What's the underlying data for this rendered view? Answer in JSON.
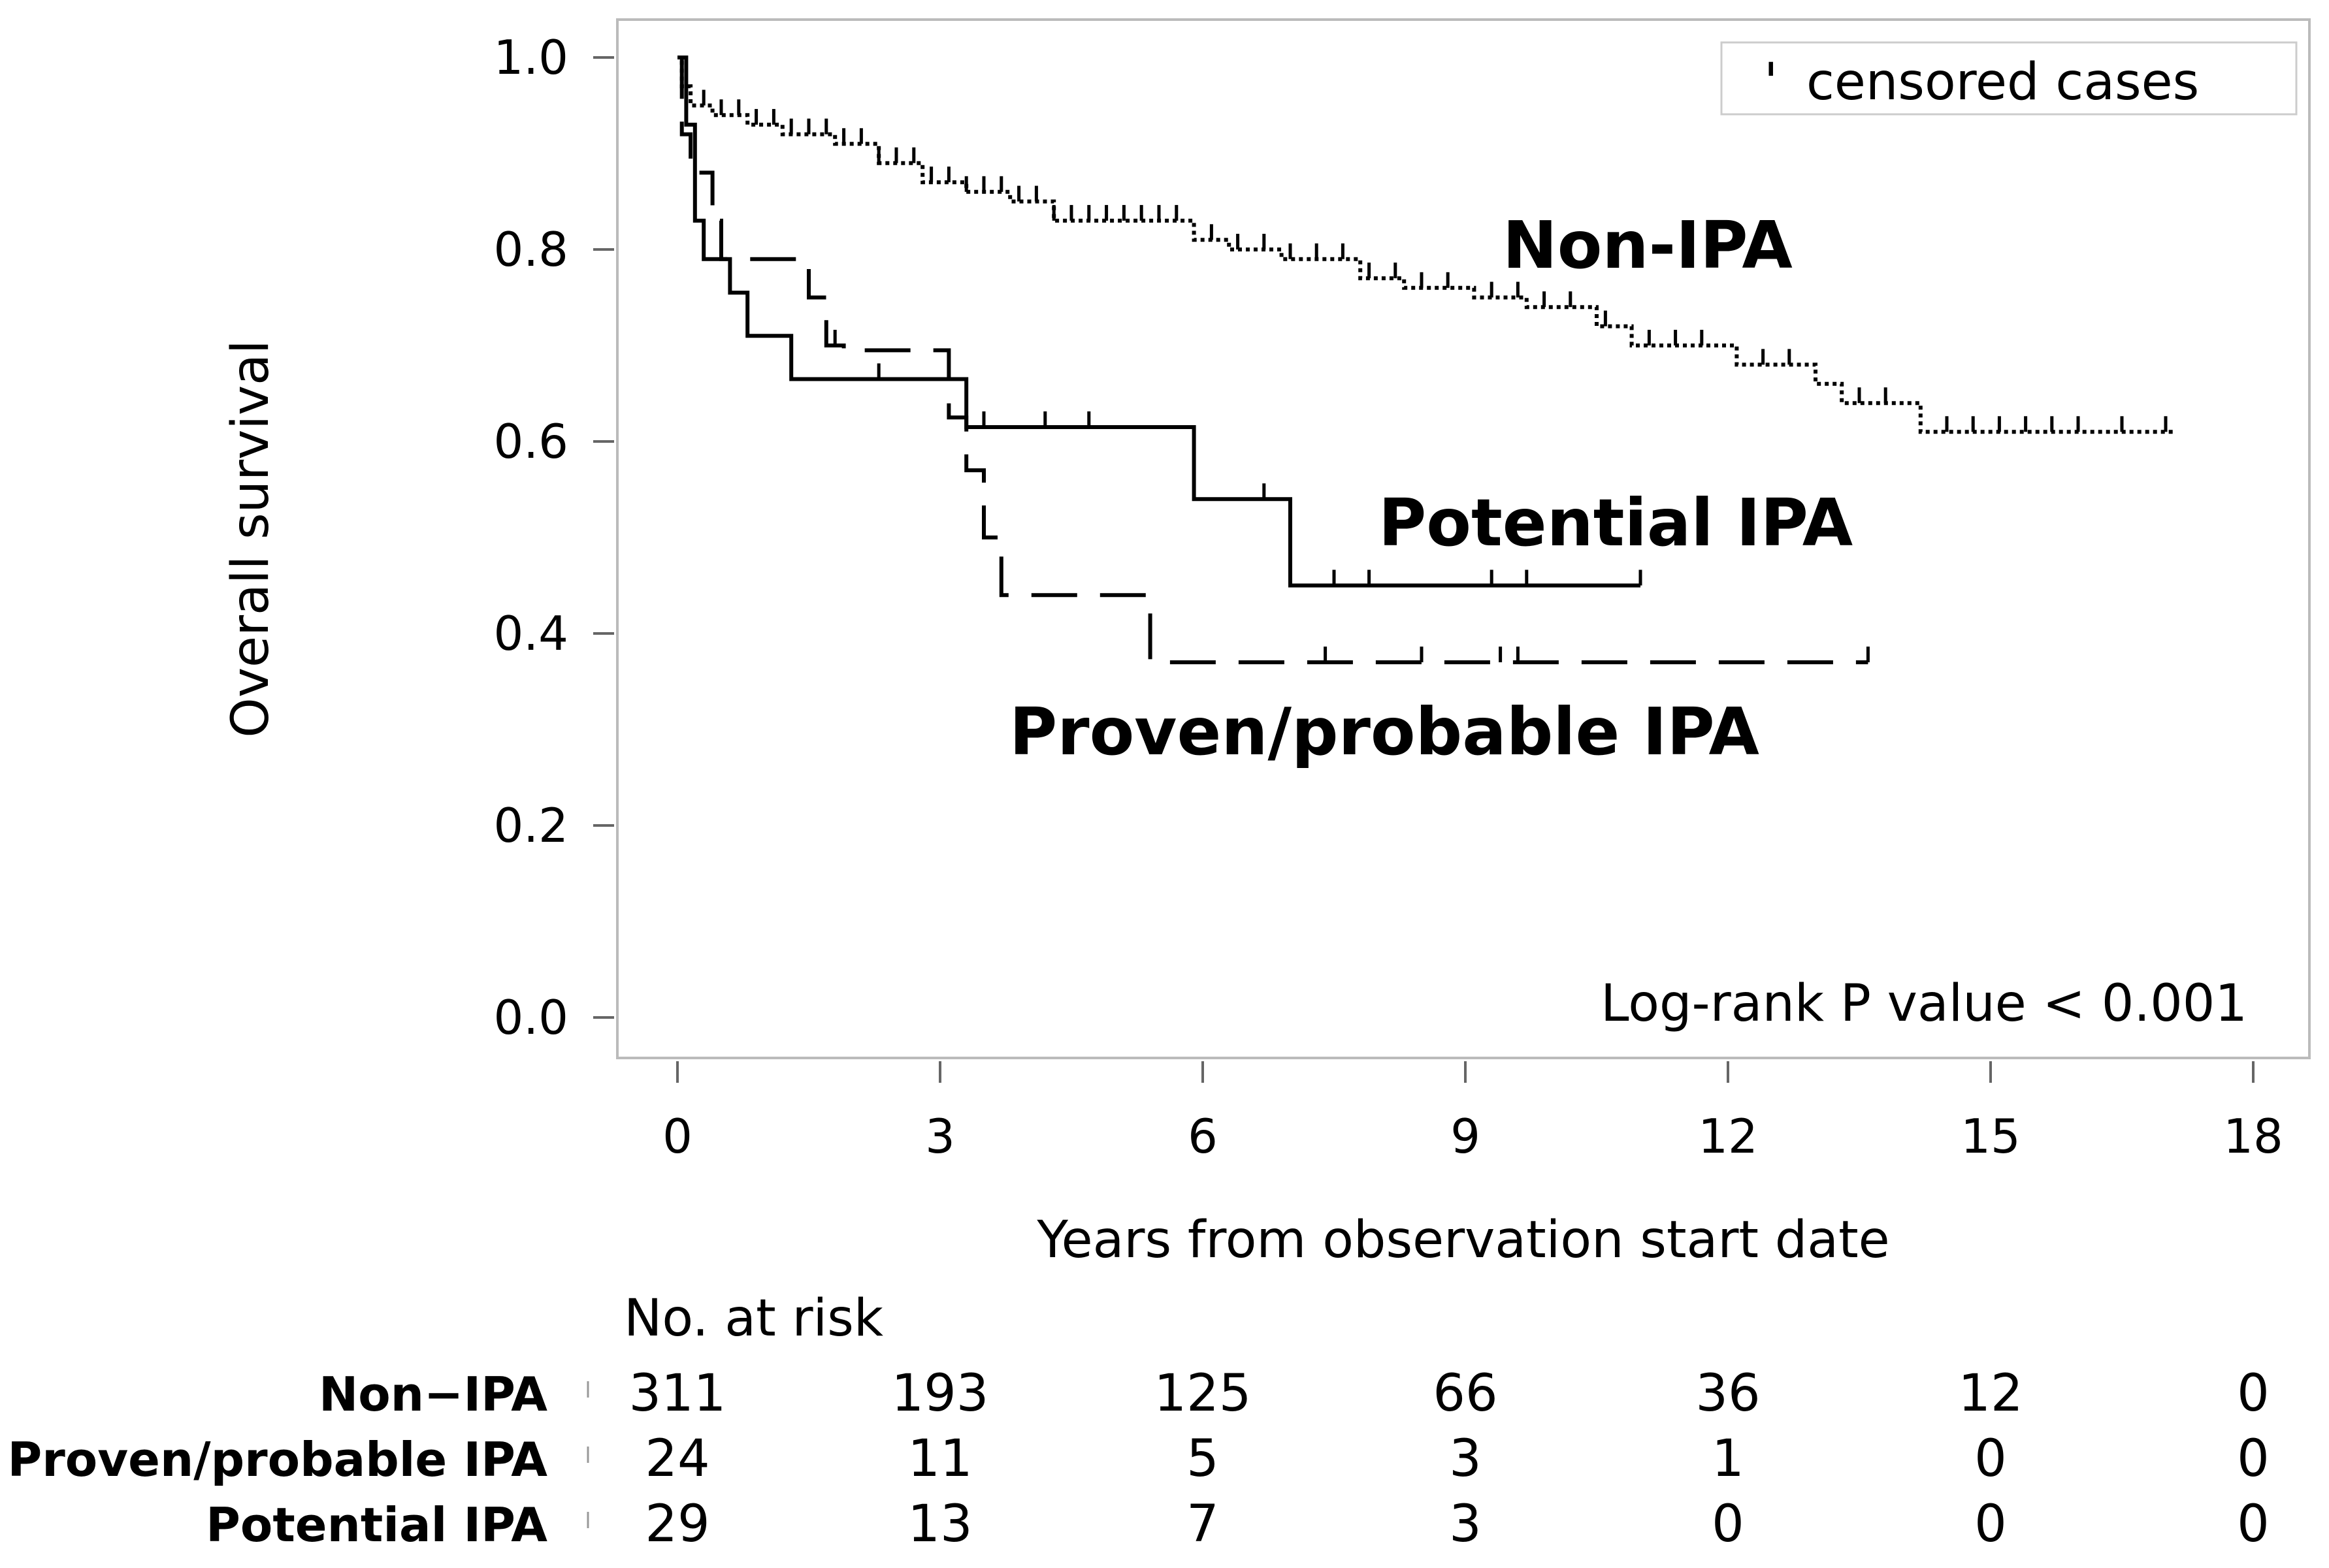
{
  "chart_data": {
    "type": "line",
    "subtype": "kaplan-meier",
    "xlabel": "Years from observation start date",
    "ylabel": "Overall survival",
    "xlim": [
      -1,
      18
    ],
    "ylim": [
      -0.05,
      1.05
    ],
    "x_ticks": [
      "0",
      "3",
      "6",
      "9",
      "12",
      "15",
      "18"
    ],
    "y_ticks": [
      "0.0",
      "0.2",
      "0.4",
      "0.6",
      "0.8",
      "1.0"
    ],
    "grid": false,
    "legend": {
      "position": "top-right",
      "censor_symbol": "'",
      "label": "censored cases"
    },
    "annotation": "Log-rank P value < 0.001",
    "series": [
      {
        "name": "Non-IPA",
        "label": "Non-IPA",
        "style": "dotted",
        "steps": [
          [
            0,
            1.0
          ],
          [
            0.05,
            0.97
          ],
          [
            0.15,
            0.95
          ],
          [
            0.4,
            0.94
          ],
          [
            0.8,
            0.93
          ],
          [
            1.2,
            0.92
          ],
          [
            1.8,
            0.91
          ],
          [
            2.3,
            0.89
          ],
          [
            2.8,
            0.87
          ],
          [
            3.3,
            0.86
          ],
          [
            3.8,
            0.85
          ],
          [
            4.3,
            0.83
          ],
          [
            5.9,
            0.81
          ],
          [
            6.3,
            0.8
          ],
          [
            6.9,
            0.79
          ],
          [
            7.8,
            0.77
          ],
          [
            8.3,
            0.76
          ],
          [
            9.1,
            0.75
          ],
          [
            9.7,
            0.74
          ],
          [
            10.5,
            0.72
          ],
          [
            10.9,
            0.7
          ],
          [
            12.1,
            0.68
          ],
          [
            13.0,
            0.66
          ],
          [
            13.3,
            0.64
          ],
          [
            14.2,
            0.61
          ],
          [
            17.1,
            0.61
          ]
        ],
        "censor_x": [
          0.3,
          0.5,
          0.7,
          0.9,
          1.1,
          1.3,
          1.5,
          1.7,
          1.9,
          2.1,
          2.3,
          2.5,
          2.7,
          2.9,
          3.1,
          3.3,
          3.5,
          3.7,
          3.9,
          4.1,
          4.3,
          4.5,
          4.7,
          4.9,
          5.1,
          5.3,
          5.5,
          5.7,
          6.1,
          6.4,
          6.7,
          7.0,
          7.3,
          7.6,
          7.9,
          8.2,
          8.5,
          8.8,
          9.3,
          9.6,
          9.9,
          10.2,
          10.6,
          11.1,
          11.4,
          11.7,
          12.4,
          12.7,
          13.5,
          13.8,
          14.5,
          14.8,
          15.1,
          15.4,
          15.7,
          16.0,
          16.5,
          17.0
        ]
      },
      {
        "name": "Proven/probable IPA",
        "label": "Proven/probable IPA",
        "style": "dashed",
        "steps": [
          [
            0,
            1.0
          ],
          [
            0.05,
            0.92
          ],
          [
            0.15,
            0.88
          ],
          [
            0.4,
            0.83
          ],
          [
            0.5,
            0.79
          ],
          [
            1.5,
            0.75
          ],
          [
            1.7,
            0.7
          ],
          [
            1.9,
            0.695
          ],
          [
            3.1,
            0.625
          ],
          [
            3.3,
            0.57
          ],
          [
            3.5,
            0.5
          ],
          [
            3.7,
            0.44
          ],
          [
            5.4,
            0.37
          ],
          [
            13.6,
            0.37
          ]
        ],
        "censor_x": [
          1.5,
          1.8,
          7.4,
          8.5,
          9.4,
          9.6,
          13.6
        ]
      },
      {
        "name": "Potential IPA",
        "label": "Potential IPA",
        "style": "solid",
        "steps": [
          [
            0,
            1.0
          ],
          [
            0.1,
            0.93
          ],
          [
            0.2,
            0.83
          ],
          [
            0.3,
            0.79
          ],
          [
            0.6,
            0.755
          ],
          [
            0.8,
            0.71
          ],
          [
            1.3,
            0.665
          ],
          [
            3.3,
            0.615
          ],
          [
            5.9,
            0.54
          ],
          [
            7.0,
            0.45
          ],
          [
            11.0,
            0.45
          ]
        ],
        "censor_x": [
          1.3,
          2.3,
          3.5,
          4.2,
          4.7,
          6.7,
          7.5,
          7.9,
          9.3,
          9.7,
          11.0
        ]
      }
    ]
  },
  "risk_table": {
    "header": "No. at risk",
    "rows": [
      {
        "label": "Non−IPA",
        "values": [
          "311",
          "193",
          "125",
          "66",
          "36",
          "12",
          "0"
        ]
      },
      {
        "label": "Proven/probable IPA",
        "values": [
          "24",
          "11",
          "5",
          "3",
          "1",
          "0",
          "0"
        ]
      },
      {
        "label": "Potential IPA",
        "values": [
          "29",
          "13",
          "7",
          "3",
          "0",
          "0",
          "0"
        ]
      }
    ]
  }
}
